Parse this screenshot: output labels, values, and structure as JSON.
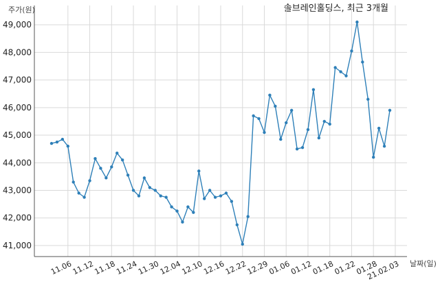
{
  "chart_data": {
    "type": "line",
    "title": "솔브레인홀딩스, 최근 3개월",
    "ylabel": "주가(원)",
    "xlabel": "날짜(일)",
    "ylim": [
      40600,
      49700
    ],
    "yticks": [
      41000,
      42000,
      43000,
      44000,
      45000,
      46000,
      47000,
      48000,
      49000
    ],
    "ytick_labels": [
      "41,000",
      "42,000",
      "43,000",
      "44,000",
      "45,000",
      "46,000",
      "47,000",
      "48,000",
      "49,000"
    ],
    "xtick_labels": [
      "11.06",
      "11.12",
      "11.18",
      "11.24",
      "11.30",
      "12.04",
      "12.10",
      "12.16",
      "12.22",
      "12.29",
      "01.06",
      "01.12",
      "01.18",
      "01.22",
      "01.28",
      "21.02.03"
    ],
    "xtick_positions": [
      3,
      7,
      11,
      15,
      19,
      23,
      27,
      31,
      35,
      39,
      43,
      47,
      51,
      55,
      59,
      63
    ],
    "grid": true,
    "line_color": "#2d7fb8",
    "series": [
      {
        "values": [
          44700,
          44750,
          44850,
          44600,
          43300,
          42900,
          42750,
          43350,
          44150,
          43800,
          43450,
          43850,
          44350,
          44100,
          43550,
          43000,
          42800,
          43450,
          43100,
          43000,
          42800,
          42750,
          42400,
          42250,
          41850,
          42400,
          42200,
          43700,
          42700,
          43000,
          42750,
          42800,
          42900,
          42600,
          41750,
          41050,
          42050,
          45700,
          45600,
          45100,
          46450,
          46050,
          44850,
          45450,
          45900,
          44500,
          44550,
          45200,
          46650,
          44900,
          45500,
          45400,
          47450,
          47300,
          47150,
          48050,
          49100,
          47650,
          46300,
          44200,
          45250,
          44600,
          45900
        ]
      }
    ]
  }
}
